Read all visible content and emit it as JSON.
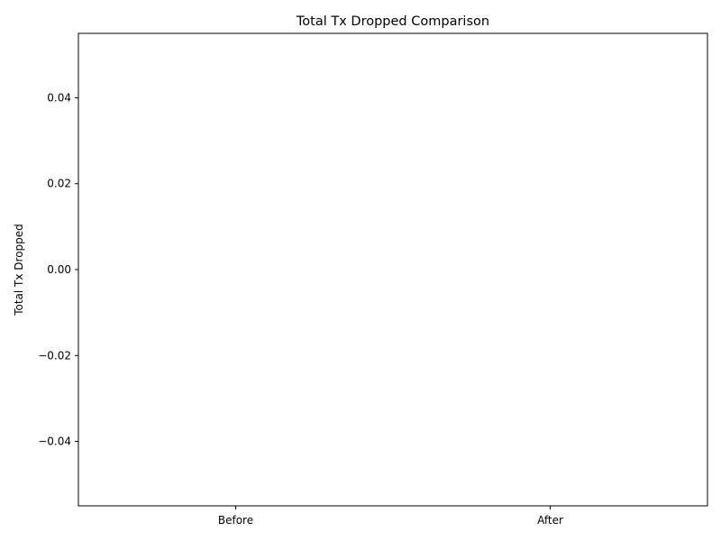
{
  "chart_data": {
    "type": "bar",
    "title": "Total Tx Dropped Comparison",
    "xlabel": "",
    "ylabel": "Total Tx Dropped",
    "categories": [
      "Before",
      "After"
    ],
    "values": [
      0,
      0
    ],
    "ylim": [
      -0.055,
      0.055
    ],
    "yticks": [
      0.04,
      0.02,
      0.0,
      -0.02,
      -0.04
    ],
    "ytick_labels": [
      "0.04",
      "0.02",
      "0.00",
      "−0.02",
      "−0.04"
    ],
    "colors": {
      "bar": "#1f77b4",
      "axis": "#000000",
      "background": "#ffffff"
    },
    "grid": false,
    "legend": "none"
  }
}
